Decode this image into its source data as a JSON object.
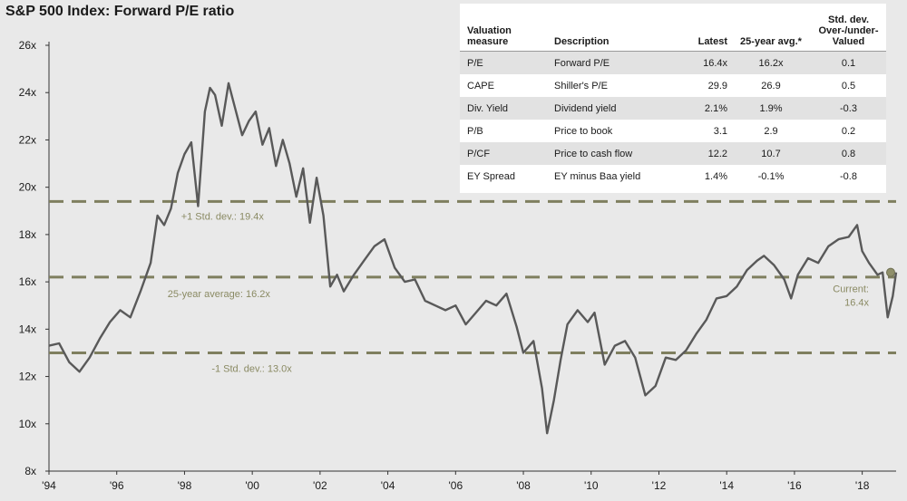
{
  "title": "S&P 500 Index: Forward P/E ratio",
  "chart_data": {
    "type": "line",
    "title": "S&P 500 Index: Forward P/E ratio",
    "xlabel": "",
    "ylabel": "",
    "xlim": [
      1994,
      2019
    ],
    "ylim": [
      8,
      26
    ],
    "x_ticks": [
      "'94",
      "'96",
      "'98",
      "'00",
      "'02",
      "'04",
      "'06",
      "'08",
      "'10",
      "'12",
      "'14",
      "'16",
      "'18"
    ],
    "y_ticks": [
      "8x",
      "10x",
      "12x",
      "14x",
      "16x",
      "18x",
      "20x",
      "22x",
      "24x",
      "26x"
    ],
    "series": [
      {
        "name": "Forward P/E",
        "color": "#595959",
        "x": [
          1994.0,
          1994.3,
          1994.6,
          1994.9,
          1995.2,
          1995.5,
          1995.8,
          1996.1,
          1996.4,
          1996.7,
          1997.0,
          1997.2,
          1997.4,
          1997.6,
          1997.8,
          1998.0,
          1998.2,
          1998.4,
          1998.6,
          1998.75,
          1998.9,
          1999.1,
          1999.3,
          1999.5,
          1999.7,
          1999.9,
          2000.1,
          2000.3,
          2000.5,
          2000.7,
          2000.9,
          2001.1,
          2001.3,
          2001.5,
          2001.7,
          2001.9,
          2002.1,
          2002.3,
          2002.5,
          2002.7,
          2003.0,
          2003.3,
          2003.6,
          2003.9,
          2004.2,
          2004.5,
          2004.8,
          2005.1,
          2005.4,
          2005.7,
          2006.0,
          2006.3,
          2006.6,
          2006.9,
          2007.2,
          2007.5,
          2007.8,
          2008.0,
          2008.3,
          2008.55,
          2008.7,
          2008.9,
          2009.1,
          2009.3,
          2009.6,
          2009.9,
          2010.1,
          2010.4,
          2010.7,
          2011.0,
          2011.3,
          2011.6,
          2011.9,
          2012.2,
          2012.5,
          2012.8,
          2013.1,
          2013.4,
          2013.7,
          2014.0,
          2014.3,
          2014.6,
          2014.9,
          2015.1,
          2015.4,
          2015.7,
          2015.9,
          2016.1,
          2016.4,
          2016.7,
          2017.0,
          2017.3,
          2017.6,
          2017.85,
          2018.0,
          2018.2,
          2018.45,
          2018.6,
          2018.75,
          2018.9,
          2019.0
        ],
        "values": [
          13.3,
          13.4,
          12.6,
          12.2,
          12.8,
          13.6,
          14.3,
          14.8,
          14.5,
          15.6,
          16.8,
          18.8,
          18.4,
          19.1,
          20.6,
          21.4,
          21.9,
          19.2,
          23.2,
          24.2,
          23.9,
          22.6,
          24.4,
          23.3,
          22.2,
          22.8,
          23.2,
          21.8,
          22.5,
          20.9,
          22.0,
          21.0,
          19.6,
          20.8,
          18.5,
          20.4,
          18.8,
          15.8,
          16.3,
          15.6,
          16.3,
          16.9,
          17.5,
          17.8,
          16.6,
          16.0,
          16.1,
          15.2,
          15.0,
          14.8,
          15.0,
          14.2,
          14.7,
          15.2,
          15.0,
          15.5,
          14.1,
          13.0,
          13.5,
          11.5,
          9.6,
          11.0,
          12.7,
          14.2,
          14.8,
          14.3,
          14.7,
          12.5,
          13.3,
          13.5,
          12.8,
          11.2,
          11.6,
          12.8,
          12.7,
          13.1,
          13.8,
          14.4,
          15.3,
          15.4,
          15.8,
          16.5,
          16.9,
          17.1,
          16.7,
          16.1,
          15.3,
          16.3,
          17.0,
          16.8,
          17.5,
          17.8,
          17.9,
          18.4,
          17.3,
          16.8,
          16.3,
          16.4,
          14.5,
          15.4,
          16.4
        ]
      }
    ],
    "reference_lines": [
      {
        "label": "+1 Std. dev.: 19.4x",
        "value": 19.4,
        "color": "#7f7f5f"
      },
      {
        "label": "25-year average: 16.2x",
        "value": 16.2,
        "color": "#7f7f5f"
      },
      {
        "label": "-1 Std. dev.: 13.0x",
        "value": 13.0,
        "color": "#7f7f5f"
      }
    ],
    "annotations": [
      {
        "label": "Current:",
        "label2": "16.4x",
        "x": 2019.0,
        "y": 16.4,
        "marker_color": "#8f8f6a"
      }
    ]
  },
  "table": {
    "headers": [
      "Valuation measure",
      "Description",
      "Latest",
      "25-year avg.*",
      "Std. dev. Over-/under- Valued"
    ],
    "rows": [
      [
        "P/E",
        "Forward P/E",
        "16.4x",
        "16.2x",
        "0.1"
      ],
      [
        "CAPE",
        "Shiller's P/E",
        "29.9",
        "26.9",
        "0.5"
      ],
      [
        "Div. Yield",
        "Dividend yield",
        "2.1%",
        "1.9%",
        "-0.3"
      ],
      [
        "P/B",
        "Price to book",
        "3.1",
        "2.9",
        "0.2"
      ],
      [
        "P/CF",
        "Price to cash flow",
        "12.2",
        "10.7",
        "0.8"
      ],
      [
        "EY Spread",
        "EY minus Baa yield",
        "1.4%",
        "-0.1%",
        "-0.8"
      ]
    ]
  }
}
